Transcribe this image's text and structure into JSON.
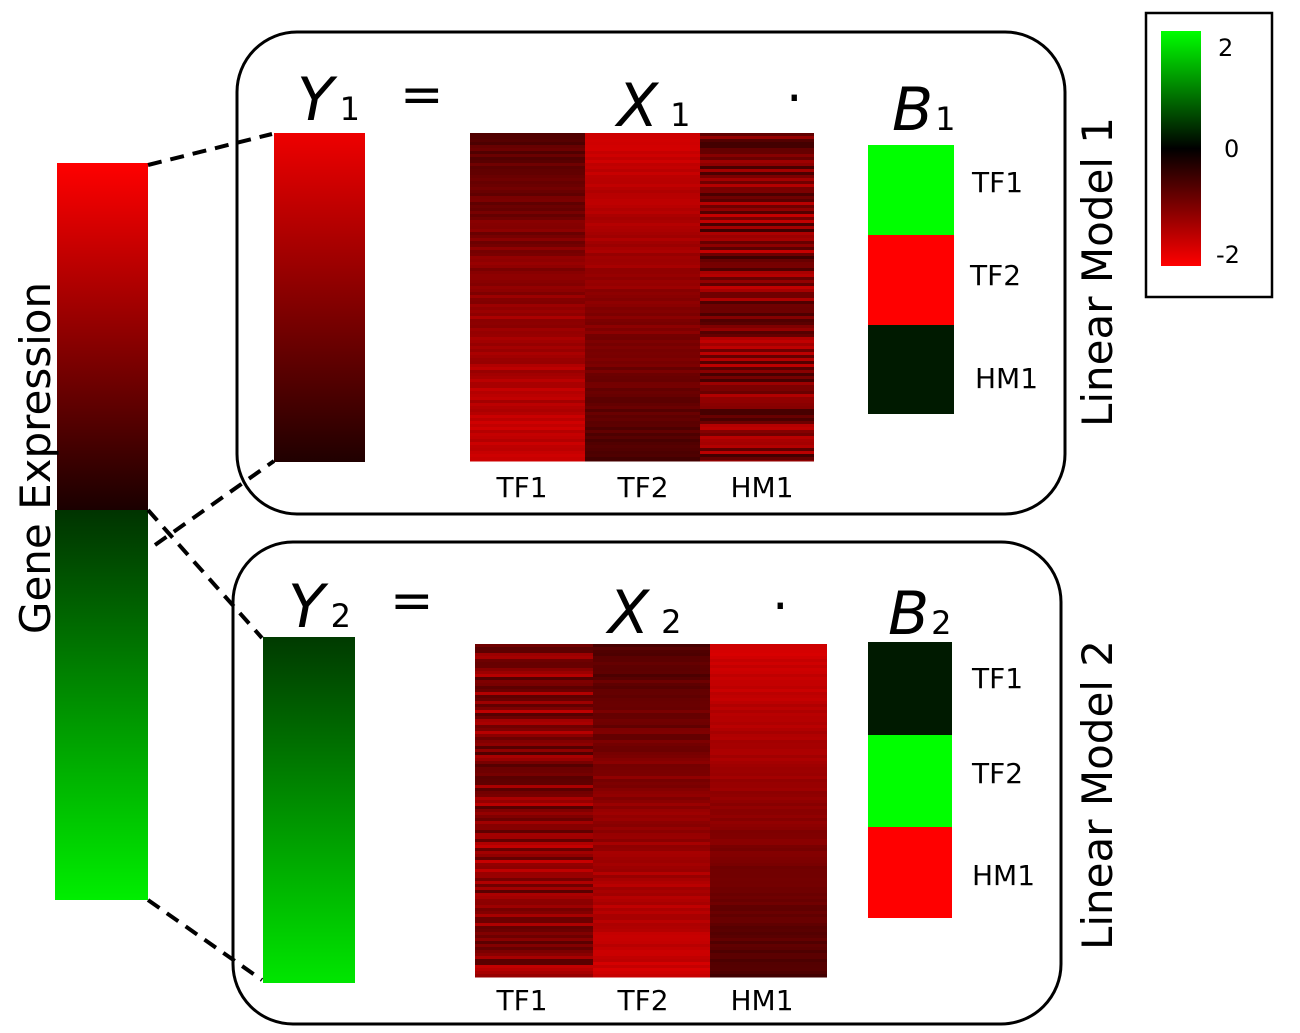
{
  "gene_expression_label": "Gene Expression",
  "colorbar": {
    "ticks": [
      "2",
      "0",
      "-2"
    ],
    "values": [
      2,
      0,
      -2
    ],
    "colors": {
      "high": "#00ff00",
      "mid": "#000000",
      "low": "#ff0000"
    }
  },
  "models": [
    {
      "title": "Linear Model 1",
      "y_symbol": "Y",
      "y_sub": "1",
      "equals": "=",
      "x_symbol": "X",
      "x_sub": "1",
      "dot": "·",
      "b_symbol": "B",
      "b_sub": "1",
      "x_columns": [
        "TF1",
        "TF2",
        "HM1"
      ],
      "b_rows": [
        {
          "label": "TF1",
          "color": "#00ff00"
        },
        {
          "label": "TF2",
          "color": "#ff0000"
        },
        {
          "label": "HM1",
          "color": "#001a00"
        }
      ]
    },
    {
      "title": "Linear Model 2",
      "y_symbol": "Y",
      "y_sub": "2",
      "equals": "=",
      "x_symbol": "X",
      "x_sub": "2",
      "dot": "·",
      "b_symbol": "B",
      "b_sub": "2",
      "x_columns": [
        "TF1",
        "TF2",
        "HM1"
      ],
      "b_rows": [
        {
          "label": "TF1",
          "color": "#001a00"
        },
        {
          "label": "TF2",
          "color": "#00ff00"
        },
        {
          "label": "HM1",
          "color": "#ff0000"
        }
      ]
    }
  ]
}
